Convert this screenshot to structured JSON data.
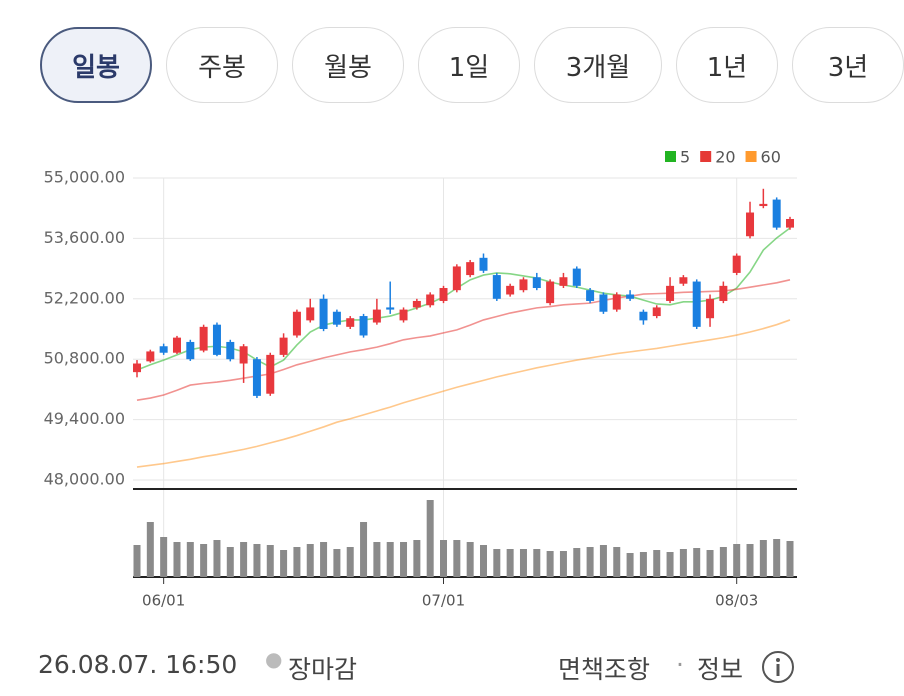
{
  "tabs": [
    {
      "label": "일봉",
      "selected": true
    },
    {
      "label": "주봉",
      "selected": false
    },
    {
      "label": "월봉",
      "selected": false
    },
    {
      "label": "1일",
      "selected": false
    },
    {
      "label": "3개월",
      "selected": false
    },
    {
      "label": "1년",
      "selected": false
    },
    {
      "label": "3년",
      "selected": false
    }
  ],
  "chart_data": {
    "type": "candlestick",
    "categories": [
      null,
      null,
      "06/01",
      null,
      null,
      null,
      null,
      null,
      null,
      null,
      null,
      null,
      null,
      null,
      null,
      null,
      null,
      null,
      null,
      null,
      null,
      null,
      null,
      "07/01",
      null,
      null,
      null,
      null,
      null,
      null,
      null,
      null,
      null,
      null,
      null,
      null,
      null,
      null,
      null,
      null,
      null,
      null,
      null,
      null,
      null,
      "08/03",
      null,
      null,
      null,
      null
    ],
    "open": [
      50500,
      50750,
      51100,
      50950,
      51200,
      51000,
      51600,
      51200,
      50700,
      50800,
      50000,
      50900,
      51350,
      51700,
      52200,
      51900,
      51550,
      51800,
      51650,
      52000,
      51700,
      52000,
      52050,
      52150,
      52400,
      52750,
      53150,
      52750,
      52300,
      52400,
      52700,
      52100,
      52500,
      52900,
      52400,
      52300,
      51950,
      52300,
      51900,
      51800,
      52150,
      52550,
      52600,
      51750,
      52150,
      52800,
      53650,
      54350,
      54500,
      53850
    ],
    "high": [
      50780,
      51020,
      51160,
      51340,
      51250,
      51600,
      51650,
      51250,
      51150,
      50850,
      50950,
      51400,
      51950,
      52200,
      52300,
      51950,
      51800,
      51850,
      52200,
      52600,
      52000,
      52200,
      52350,
      52500,
      53000,
      53100,
      53250,
      52800,
      52550,
      52700,
      52800,
      52650,
      52800,
      52950,
      52450,
      52350,
      52350,
      52400,
      51950,
      52050,
      52700,
      52750,
      52650,
      52300,
      52600,
      53250,
      54450,
      54750,
      54550,
      54100
    ],
    "low": [
      50380,
      50720,
      50900,
      50920,
      50760,
      50960,
      50870,
      50750,
      50250,
      49900,
      49950,
      50850,
      51300,
      51650,
      51450,
      51550,
      51500,
      51300,
      51600,
      51850,
      51650,
      51950,
      52000,
      52100,
      52350,
      52700,
      52800,
      52150,
      52250,
      52350,
      52400,
      52050,
      52450,
      52450,
      52100,
      51850,
      51900,
      52150,
      51600,
      51750,
      52100,
      52500,
      51500,
      51550,
      52100,
      52750,
      53600,
      54300,
      53800,
      53800
    ],
    "close": [
      50700,
      50980,
      50950,
      51300,
      50800,
      51550,
      50900,
      50800,
      51100,
      49950,
      50900,
      51300,
      51900,
      52000,
      51500,
      51600,
      51750,
      51350,
      51950,
      51950,
      51950,
      52150,
      52300,
      52450,
      52950,
      53050,
      52850,
      52200,
      52500,
      52650,
      52450,
      52600,
      52700,
      52500,
      52150,
      51900,
      52300,
      52200,
      51700,
      52000,
      52500,
      52700,
      51550,
      52200,
      52500,
      53200,
      54200,
      54400,
      53850,
      54050
    ],
    "up_color": "#e8383d",
    "down_color": "#1a7fe0",
    "moving_averages": [
      {
        "name": "5",
        "color": "#22b422",
        "values": [
          50550,
          50670,
          50780,
          50900,
          51020,
          51080,
          51100,
          51060,
          50970,
          50780,
          50620,
          50780,
          51130,
          51430,
          51590,
          51660,
          51710,
          51710,
          51750,
          51800,
          51890,
          51990,
          52100,
          52240,
          52450,
          52640,
          52750,
          52800,
          52780,
          52730,
          52680,
          52590,
          52520,
          52470,
          52400,
          52330,
          52290,
          52260,
          52170,
          52080,
          52060,
          52130,
          52130,
          52170,
          52260,
          52450,
          52820,
          53330,
          53610,
          53840
        ]
      },
      {
        "name": "20",
        "color": "#e53935",
        "values": [
          49850,
          49900,
          49970,
          50080,
          50200,
          50240,
          50270,
          50310,
          50360,
          50410,
          50460,
          50560,
          50670,
          50750,
          50830,
          50900,
          50970,
          51020,
          51080,
          51160,
          51250,
          51300,
          51340,
          51410,
          51480,
          51590,
          51710,
          51790,
          51870,
          51930,
          51990,
          52020,
          52060,
          52080,
          52100,
          52160,
          52220,
          52260,
          52310,
          52320,
          52330,
          52350,
          52360,
          52370,
          52380,
          52420,
          52470,
          52520,
          52570,
          52640
        ]
      },
      {
        "name": "60",
        "color": "#ff9a2e",
        "values": [
          48300,
          48340,
          48380,
          48430,
          48480,
          48540,
          48590,
          48650,
          48710,
          48780,
          48860,
          48940,
          49030,
          49130,
          49230,
          49340,
          49420,
          49510,
          49600,
          49690,
          49790,
          49880,
          49970,
          50060,
          50150,
          50230,
          50310,
          50390,
          50460,
          50530,
          50600,
          50660,
          50720,
          50780,
          50830,
          50880,
          50930,
          50970,
          51010,
          51050,
          51100,
          51150,
          51200,
          51250,
          51300,
          51360,
          51430,
          51510,
          51600,
          51710
        ]
      }
    ],
    "volume": [
      32,
      55,
      40,
      35,
      35,
      33,
      37,
      30,
      35,
      33,
      32,
      27,
      30,
      33,
      35,
      28,
      30,
      55,
      35,
      35,
      35,
      37,
      77,
      37,
      37,
      35,
      32,
      28,
      28,
      28,
      28,
      26,
      26,
      29,
      30,
      32,
      30,
      24,
      25,
      27,
      25,
      28,
      29,
      27,
      30,
      33,
      33,
      37,
      38,
      36
    ],
    "volume_color": "#8a8a8a",
    "ylim": [
      48000,
      55000
    ],
    "yticks": [
      {
        "value": 48000,
        "label": "48,000.00"
      },
      {
        "value": 49400,
        "label": "49,400.00"
      },
      {
        "value": 50800,
        "label": "50,800.00"
      },
      {
        "value": 52200,
        "label": "52,200.00"
      },
      {
        "value": 53600,
        "label": "53,600.00"
      },
      {
        "value": 55000,
        "label": "55,000.00"
      }
    ],
    "grid": true,
    "legend": "top-right"
  },
  "footer": {
    "timestamp": "26.08.07. 16:50",
    "status": "장마감",
    "disclaimer": "면책조항",
    "info": "정보"
  }
}
